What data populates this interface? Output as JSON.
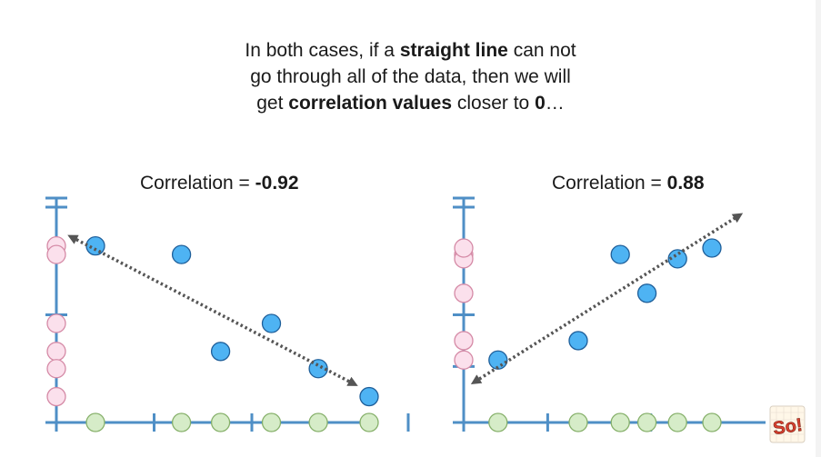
{
  "headline": {
    "line1_a": "In both cases, if a ",
    "line1_b": "straight line",
    "line1_c": " can not",
    "line2": "go through all of the data, then we will",
    "line3_a": "get ",
    "line3_b": "correlation values",
    "line3_c": " closer to ",
    "line3_d": "0",
    "line3_e": "…"
  },
  "chart_data": [
    {
      "type": "scatter",
      "title_prefix": "Correlation = ",
      "title_value": "-0.92",
      "correlation": -0.92,
      "xlim": [
        0,
        10
      ],
      "ylim": [
        0,
        10
      ],
      "points": [
        {
          "x": 1.0,
          "y": 8.2
        },
        {
          "x": 3.2,
          "y": 7.8
        },
        {
          "x": 4.2,
          "y": 3.3
        },
        {
          "x": 5.5,
          "y": 4.6
        },
        {
          "x": 6.7,
          "y": 2.5
        },
        {
          "x": 8.0,
          "y": 1.2
        }
      ],
      "trend_line": {
        "x1": 0.4,
        "y1": 8.6,
        "x2": 7.6,
        "y2": 1.8
      },
      "x_ticks": [
        2.5,
        5.0,
        9.0
      ],
      "y_ticks": [
        5.0,
        10.0
      ]
    },
    {
      "type": "scatter",
      "title_prefix": "Correlation = ",
      "title_value": "0.88",
      "correlation": 0.88,
      "xlim": [
        0,
        10
      ],
      "ylim": [
        0,
        10
      ],
      "points": [
        {
          "x": 0.9,
          "y": 2.9
        },
        {
          "x": 3.0,
          "y": 3.8
        },
        {
          "x": 4.1,
          "y": 7.8
        },
        {
          "x": 4.8,
          "y": 6.0
        },
        {
          "x": 5.6,
          "y": 7.6
        },
        {
          "x": 6.5,
          "y": 8.1
        }
      ],
      "trend_line": {
        "x1": 0.3,
        "y1": 1.9,
        "x2": 7.2,
        "y2": 9.6
      },
      "x_ticks": [
        2.2,
        4.9
      ],
      "y_ticks": [
        2.6,
        5.0,
        10.0
      ]
    }
  ],
  "colors": {
    "axis": "#4f8fc6",
    "point_fill": "#4eb3f3",
    "point_stroke": "#1f5f9a",
    "x_proj_fill": "#d6ecc8",
    "x_proj_stroke": "#86b06a",
    "y_proj_fill": "#fbe0ec",
    "y_proj_stroke": "#d58aa6",
    "arrow": "#555555"
  },
  "logo": {
    "icon": "statquest-logo-icon",
    "text": "So!"
  }
}
